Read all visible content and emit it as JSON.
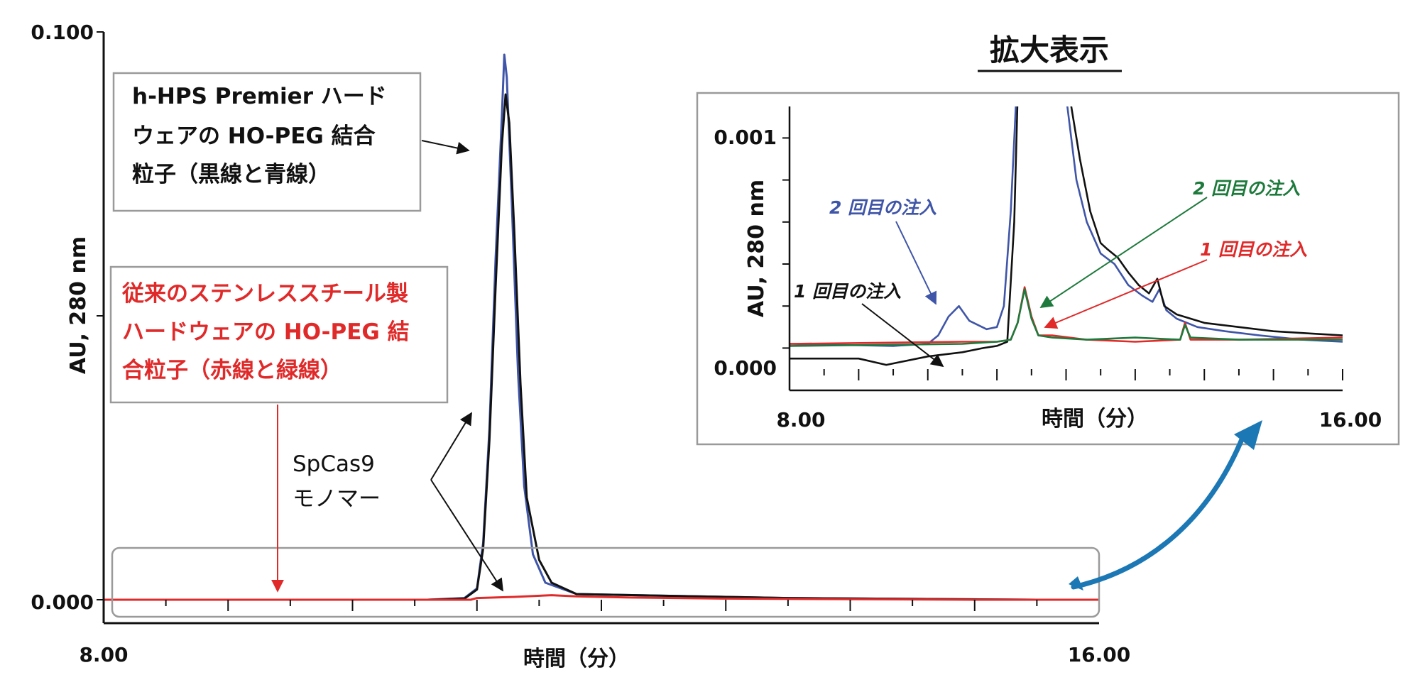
{
  "colors": {
    "black": "#111111",
    "blue": "#3f55a8",
    "red": "#e02a2a",
    "green": "#1e7a3c",
    "zoom_arrow": "#1b78b4",
    "box_border": "#9a9a9a"
  },
  "chart_data": [
    {
      "type": "line",
      "panel": "main",
      "title": "",
      "xlabel": "時間（分）",
      "ylabel": "AU, 280 nm",
      "xlim": [
        8.0,
        16.0
      ],
      "ylim": [
        0.0,
        0.1
      ],
      "x_tick_labels": [
        "8.00",
        "16.00"
      ],
      "y_tick_labels": [
        "0.100",
        "0.000"
      ],
      "grid": false,
      "series": [
        {
          "color": "blue",
          "points": [
            [
              8.0,
              0.0
            ],
            [
              10.6,
              0.0
            ],
            [
              10.9,
              0.0003
            ],
            [
              11.0,
              0.002
            ],
            [
              11.05,
              0.01
            ],
            [
              11.1,
              0.03
            ],
            [
              11.15,
              0.06
            ],
            [
              11.2,
              0.085
            ],
            [
              11.22,
              0.096
            ],
            [
              11.24,
              0.092
            ],
            [
              11.28,
              0.07
            ],
            [
              11.33,
              0.04
            ],
            [
              11.38,
              0.02
            ],
            [
              11.45,
              0.008
            ],
            [
              11.55,
              0.003
            ],
            [
              11.8,
              0.001
            ],
            [
              13.5,
              0.0003
            ],
            [
              15.5,
              0.0
            ],
            [
              16.0,
              0.0
            ]
          ]
        },
        {
          "color": "black",
          "points": [
            [
              8.0,
              0.0
            ],
            [
              10.6,
              0.0
            ],
            [
              10.9,
              0.0002
            ],
            [
              11.0,
              0.0018
            ],
            [
              11.05,
              0.009
            ],
            [
              11.1,
              0.028
            ],
            [
              11.15,
              0.055
            ],
            [
              11.2,
              0.08
            ],
            [
              11.23,
              0.089
            ],
            [
              11.26,
              0.084
            ],
            [
              11.3,
              0.065
            ],
            [
              11.35,
              0.038
            ],
            [
              11.4,
              0.018
            ],
            [
              11.5,
              0.007
            ],
            [
              11.6,
              0.003
            ],
            [
              11.8,
              0.001
            ],
            [
              13.5,
              0.0003
            ],
            [
              15.5,
              0.0
            ],
            [
              16.0,
              0.0
            ]
          ]
        },
        {
          "color": "red",
          "points": [
            [
              8.0,
              0.0
            ],
            [
              10.95,
              0.0
            ],
            [
              11.0,
              0.0003
            ],
            [
              11.3,
              0.0005
            ],
            [
              11.6,
              0.0008
            ],
            [
              11.8,
              0.0006
            ],
            [
              12.2,
              0.0004
            ],
            [
              13.0,
              0.0002
            ],
            [
              15.0,
              0.0
            ],
            [
              16.0,
              0.0
            ]
          ]
        }
      ]
    },
    {
      "type": "line",
      "panel": "zoom",
      "title": "拡大表示",
      "xlabel": "時間（分）",
      "ylabel": "AU, 280 nm",
      "xlim": [
        8.0,
        16.0
      ],
      "ylim": [
        -0.0001,
        0.00115
      ],
      "x_tick_labels": [
        "8.00",
        "16.00"
      ],
      "y_tick_labels": [
        "0.001",
        "0.000"
      ],
      "grid": false,
      "series": [
        {
          "color": "black",
          "points": [
            [
              8.0,
              -5e-05
            ],
            [
              9.0,
              -5e-05
            ],
            [
              9.4,
              -8e-05
            ],
            [
              10.0,
              -4e-05
            ],
            [
              10.5,
              -2e-05
            ],
            [
              10.8,
              0.0
            ],
            [
              11.0,
              1e-05
            ],
            [
              11.15,
              3e-05
            ],
            [
              11.25,
              0.0006
            ],
            [
              11.3,
              0.0012
            ]
          ]
        },
        {
          "color": "blue",
          "points": [
            [
              8.0,
              2e-05
            ],
            [
              9.5,
              1e-05
            ],
            [
              10.0,
              2e-05
            ],
            [
              10.15,
              6e-05
            ],
            [
              10.3,
              0.00015
            ],
            [
              10.45,
              0.0002
            ],
            [
              10.6,
              0.00013
            ],
            [
              10.85,
              9e-05
            ],
            [
              11.0,
              0.0001
            ],
            [
              11.1,
              0.0002
            ],
            [
              11.2,
              0.00065
            ],
            [
              11.28,
              0.0012
            ]
          ]
        },
        {
          "color": "blue",
          "points": [
            [
              12.0,
              0.0012
            ],
            [
              12.15,
              0.0008
            ],
            [
              12.3,
              0.0006
            ],
            [
              12.5,
              0.00045
            ],
            [
              12.7,
              0.0004
            ],
            [
              12.9,
              0.0003
            ],
            [
              13.1,
              0.00025
            ],
            [
              13.25,
              0.00022
            ],
            [
              13.35,
              0.00028
            ],
            [
              13.45,
              0.00018
            ],
            [
              13.6,
              0.00014
            ],
            [
              13.9,
              0.0001
            ],
            [
              14.3,
              8e-05
            ],
            [
              14.8,
              6e-05
            ],
            [
              15.4,
              4e-05
            ],
            [
              16.0,
              3e-05
            ]
          ]
        },
        {
          "color": "black",
          "points": [
            [
              12.05,
              0.0012
            ],
            [
              12.2,
              0.0009
            ],
            [
              12.35,
              0.00065
            ],
            [
              12.5,
              0.0005
            ],
            [
              12.6,
              0.00047
            ],
            [
              12.75,
              0.00043
            ],
            [
              12.9,
              0.00036
            ],
            [
              13.05,
              0.0003
            ],
            [
              13.2,
              0.00026
            ],
            [
              13.32,
              0.00033
            ],
            [
              13.42,
              0.0002
            ],
            [
              13.6,
              0.00016
            ],
            [
              14.0,
              0.00012
            ],
            [
              14.5,
              0.0001
            ],
            [
              15.0,
              8e-05
            ],
            [
              15.5,
              7e-05
            ],
            [
              16.0,
              6e-05
            ]
          ]
        },
        {
          "color": "red",
          "points": [
            [
              8.0,
              2e-05
            ],
            [
              10.5,
              3e-05
            ],
            [
              11.0,
              3e-05
            ],
            [
              11.2,
              4e-05
            ],
            [
              11.3,
              0.00012
            ],
            [
              11.4,
              0.00029
            ],
            [
              11.5,
              0.00015
            ],
            [
              11.6,
              6e-05
            ],
            [
              11.8,
              6e-05
            ],
            [
              12.3,
              4e-05
            ],
            [
              13.0,
              3e-05
            ],
            [
              13.65,
              4e-05
            ],
            [
              13.72,
              0.00012
            ],
            [
              13.8,
              4e-05
            ],
            [
              14.5,
              4e-05
            ],
            [
              16.0,
              5e-05
            ]
          ]
        },
        {
          "color": "green",
          "points": [
            [
              8.0,
              1e-05
            ],
            [
              10.5,
              2e-05
            ],
            [
              11.0,
              3e-05
            ],
            [
              11.2,
              4e-05
            ],
            [
              11.3,
              0.00012
            ],
            [
              11.4,
              0.00028
            ],
            [
              11.5,
              0.00014
            ],
            [
              11.6,
              6e-05
            ],
            [
              11.8,
              5e-05
            ],
            [
              12.3,
              4e-05
            ],
            [
              13.0,
              5e-05
            ],
            [
              13.65,
              4e-05
            ],
            [
              13.72,
              0.00011
            ],
            [
              13.8,
              5e-05
            ],
            [
              14.5,
              4e-05
            ],
            [
              16.0,
              4e-05
            ]
          ]
        }
      ]
    }
  ],
  "annotations": {
    "box_black": [
      "h-HPS Premier ハード",
      "ウェアの HO-PEG 結合",
      "粒子（黒線と青線）"
    ],
    "box_red": [
      "従来のステンレススチール製",
      "ハードウェアの HO-PEG 結",
      "合粒子（赤線と緑線）"
    ],
    "monomer": [
      "SpCas9",
      "モノマー"
    ],
    "zoom_title": "拡大表示",
    "inj_blue_2": "2 回目の注入",
    "inj_black_1": "1 回目の注入",
    "inj_green_2": "2 回目の注入",
    "inj_red_1": "1 回目の注入"
  }
}
